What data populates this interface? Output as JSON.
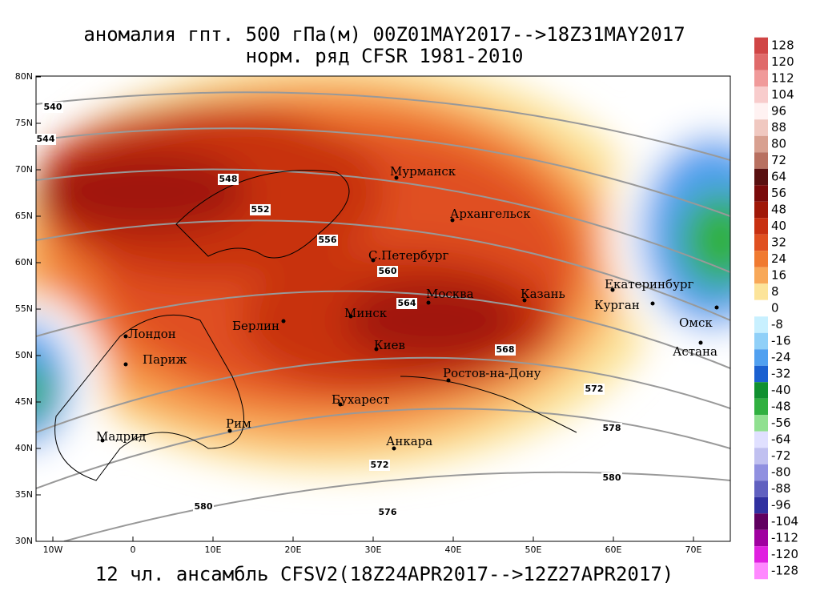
{
  "header": {
    "title": "аномалия гпт. 500 гПа(м) 00Z01MAY2017-->18Z31MAY2017",
    "subtitle": "норм. ряд CFSR 1981-2010"
  },
  "footer": "12 чл. ансамбль CFSV2(18Z24APR2017-->12Z27APR2017)",
  "lon_ticks": [
    {
      "value": -10,
      "label": "10W"
    },
    0,
    {
      "value": 10,
      "label": "10E"
    },
    {
      "value": 20,
      "label": "20E"
    },
    {
      "value": 30,
      "label": "30E"
    },
    {
      "value": 40,
      "label": "40E"
    },
    {
      "value": 50,
      "label": "50E"
    },
    {
      "value": 60,
      "label": "60E"
    },
    {
      "value": 70,
      "label": "70E"
    }
  ],
  "lat_ticks": [
    {
      "value": 80,
      "label": "80N"
    },
    {
      "value": 75,
      "label": "75N"
    },
    {
      "value": 70,
      "label": "70N"
    },
    {
      "value": 65,
      "label": "65N"
    },
    {
      "value": 60,
      "label": "60N"
    },
    {
      "value": 55,
      "label": "55N"
    },
    {
      "value": 50,
      "label": "50N"
    },
    {
      "value": 45,
      "label": "45N"
    },
    {
      "value": 40,
      "label": "40N"
    },
    {
      "value": 35,
      "label": "35N"
    },
    {
      "value": 30,
      "label": "30N"
    }
  ],
  "colorbar": {
    "levels": [
      128,
      120,
      112,
      104,
      96,
      88,
      80,
      72,
      64,
      56,
      48,
      40,
      32,
      24,
      16,
      8,
      0,
      -8,
      -16,
      -24,
      -32,
      -40,
      -48,
      -56,
      -64,
      -72,
      -80,
      -88,
      -96,
      -104,
      -112,
      -120,
      -128
    ],
    "colors": [
      "#d04545",
      "#e06a6a",
      "#f09a9a",
      "#f8cccc",
      "#fff2f2",
      "#f0c8c0",
      "#d8a090",
      "#b87060",
      "#5a1010",
      "#7a0a0a",
      "#a01808",
      "#c83010",
      "#e05020",
      "#f07a30",
      "#f8a858",
      "#fce49a",
      "#ffffff",
      "#c8f0ff",
      "#90d0f8",
      "#50a0f0",
      "#1a60d0",
      "#109030",
      "#30b040",
      "#90e090",
      "#e0e0ff",
      "#c0c0f0",
      "#9090e0",
      "#6060c0",
      "#3030a0",
      "#600060",
      "#a000a0",
      "#e020e0",
      "#ff88ff"
    ]
  },
  "cities": [
    "Мурманск",
    "Архангельск",
    "С.Петербург",
    "Москва",
    "Казань",
    "Екатеринбург",
    "Курган",
    "Омск",
    "Астана",
    "Минск",
    "Киев",
    "Берлин",
    "Лондон",
    "Париж",
    "Ростов-на-Дону",
    "Бухарест",
    "Рим",
    "Мадрид",
    "Анкара"
  ],
  "contour_labels": [
    540,
    544,
    548,
    552,
    556,
    560,
    564,
    568,
    572,
    576,
    578,
    580,
    572,
    580
  ]
}
